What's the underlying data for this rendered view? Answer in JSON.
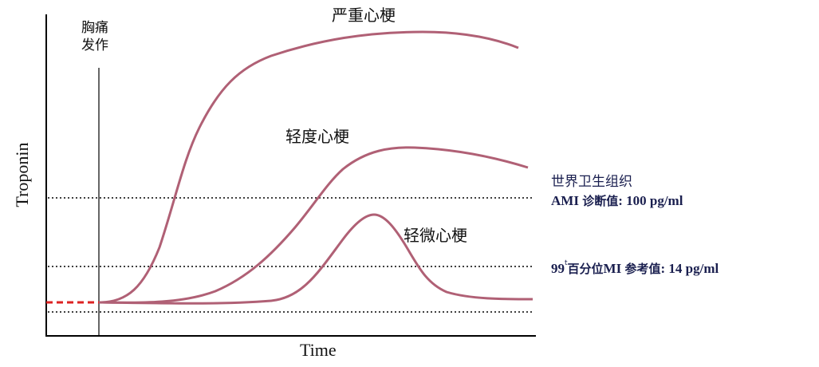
{
  "diagram": {
    "axes": {
      "x_label": "Time",
      "y_label": "Troponin"
    },
    "onset": {
      "line1": "胸痛",
      "line2": "发作"
    },
    "curves": [
      {
        "id": "severe",
        "label": "严重心梗"
      },
      {
        "id": "mild",
        "label": "轻度心梗"
      },
      {
        "id": "minor",
        "label": "轻微心梗"
      }
    ],
    "thresholds": {
      "who": {
        "line1": "世界卫生组织",
        "line2_prefix": "AMI ",
        "line2_cjk": "诊断值",
        "line2_value": ": 100 pg/ml"
      },
      "p99": {
        "prefix": "99",
        "sup": "t",
        "cjk": "百分位",
        "mid": "MI ",
        "cjk2": "参考值",
        "value": ": 14 pg/ml"
      }
    },
    "colors": {
      "curve": "#b06075",
      "baseline_dash": "#dd2222",
      "threshold_text": "#1a1f4f",
      "axis": "#000000"
    }
  }
}
